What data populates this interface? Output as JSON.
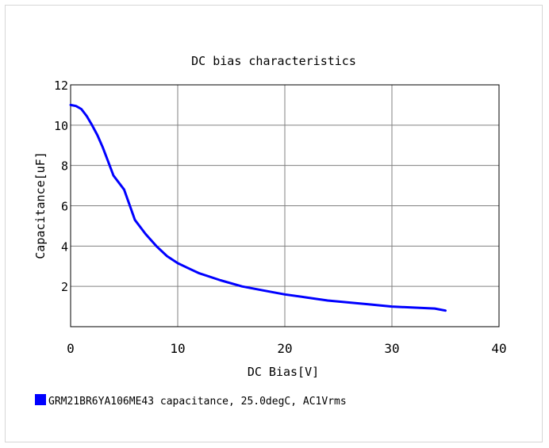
{
  "chart_data": {
    "type": "line",
    "title": "DC bias characteristics",
    "xlabel": "DC Bias[V]",
    "ylabel": "Capacitance[uF]",
    "xlim": [
      0,
      40
    ],
    "ylim": [
      0,
      12
    ],
    "xticks": [
      0,
      10,
      20,
      30,
      40
    ],
    "yticks": [
      2,
      4,
      6,
      8,
      10,
      12
    ],
    "grid": true,
    "legend_position": "bottom-left",
    "series": [
      {
        "name": "GRM21BR6YA106ME43 capacitance, 25.0degC, AC1Vrms",
        "color": "#0000ff",
        "x": [
          0,
          0.5,
          1,
          1.5,
          2,
          2.5,
          3,
          3.5,
          4,
          5,
          6,
          7,
          8,
          9,
          10,
          11,
          12,
          14,
          16,
          18,
          20,
          22,
          24,
          26,
          28,
          30,
          32,
          34,
          35
        ],
        "y": [
          11.0,
          10.95,
          10.8,
          10.45,
          10.0,
          9.5,
          8.9,
          8.2,
          7.5,
          6.8,
          5.3,
          4.6,
          4.0,
          3.5,
          3.15,
          2.9,
          2.65,
          2.3,
          2.0,
          1.8,
          1.6,
          1.45,
          1.3,
          1.2,
          1.1,
          1.0,
          0.95,
          0.9,
          0.8
        ]
      }
    ]
  }
}
